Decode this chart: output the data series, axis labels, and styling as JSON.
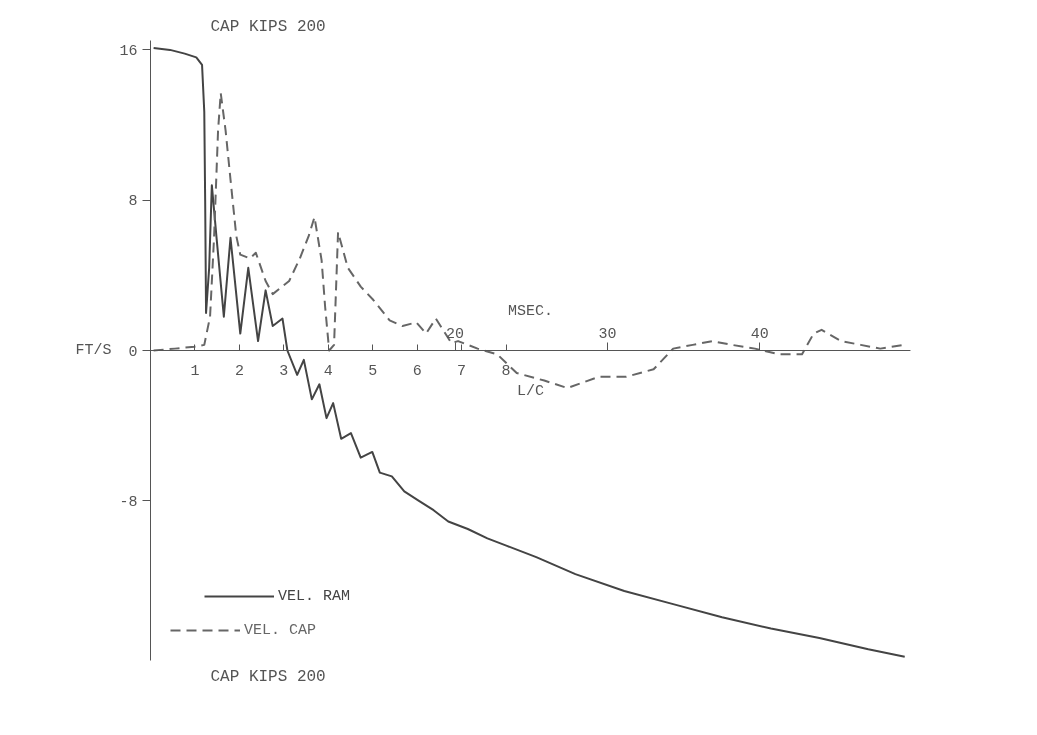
{
  "chart_data": {
    "type": "line",
    "title": "CAP KIPS 200",
    "xlabel": "L/C",
    "x2label": "MSEC.",
    "ylabel": "FT/S",
    "annotations": [
      "CAP KIPS 200"
    ],
    "xlim": [
      0,
      17.1
    ],
    "xticks": [
      1,
      2,
      3,
      4,
      5,
      6,
      7,
      8
    ],
    "x2lim": [
      0,
      49.9
    ],
    "x2ticks": [
      20,
      30,
      40
    ],
    "ylim": [
      -16.5,
      16.5
    ],
    "yticks": [
      -8,
      0,
      8,
      16
    ],
    "grid": false,
    "legend": "bottom left",
    "series": [
      {
        "name": "VEL. RAM",
        "color": "#444444",
        "line_style": "solid",
        "x": [
          0.07,
          0.44,
          0.77,
          1.03,
          1.16,
          1.21,
          1.23,
          1.25,
          1.32,
          1.38,
          1.49,
          1.65,
          1.8,
          2.02,
          2.2,
          2.42,
          2.59,
          2.75,
          2.97,
          3.08,
          3.3,
          3.45,
          3.63,
          3.8,
          3.96,
          4.11,
          4.29,
          4.51,
          4.73,
          4.99,
          5.16,
          5.43,
          5.71,
          6.04,
          6.37,
          6.7,
          7.14,
          7.58,
          8.02,
          8.68,
          9.56,
          10.66,
          11.76,
          12.86,
          13.96,
          15.05,
          16.15,
          16.97
        ],
        "values": [
          16.1,
          16.0,
          15.8,
          15.6,
          15.2,
          12.7,
          8.0,
          2.0,
          4.4,
          8.8,
          5.9,
          1.8,
          6.0,
          0.9,
          4.4,
          0.5,
          3.2,
          1.3,
          1.7,
          0.0,
          -1.3,
          -0.5,
          -2.6,
          -1.8,
          -3.6,
          -2.8,
          -4.7,
          -4.4,
          -5.7,
          -5.4,
          -6.5,
          -6.7,
          -7.5,
          -8.0,
          -8.5,
          -9.1,
          -9.5,
          -10.0,
          -10.4,
          -11.0,
          -11.9,
          -12.8,
          -13.5,
          -14.2,
          -14.8,
          -15.3,
          -15.9,
          -16.3
        ]
      },
      {
        "name": "VEL. CAP",
        "color": "#666666",
        "line_style": "dashed",
        "x": [
          0.07,
          0.55,
          0.99,
          1.21,
          1.34,
          1.43,
          1.52,
          1.58,
          1.69,
          1.8,
          1.93,
          2.02,
          2.24,
          2.37,
          2.59,
          2.75,
          3.12,
          3.36,
          3.56,
          3.69,
          3.85,
          3.93,
          4.02,
          4.13,
          4.22,
          4.44,
          4.73,
          5.01,
          5.38,
          5.67,
          5.98,
          6.2,
          6.42,
          6.77,
          6.92,
          7.36,
          7.8,
          8.24,
          8.86,
          9.38,
          10.09,
          10.7,
          11.32,
          11.76,
          12.2,
          12.64,
          13.08,
          13.6,
          14.13,
          14.66,
          14.92,
          15.1,
          15.54,
          15.98,
          16.42,
          16.95
        ],
        "values": [
          0.0,
          0.1,
          0.2,
          0.3,
          1.8,
          6.0,
          11.7,
          13.7,
          11.7,
          9.1,
          6.1,
          5.1,
          4.9,
          5.2,
          3.7,
          3.0,
          3.7,
          4.9,
          6.1,
          7.1,
          4.8,
          2.3,
          0.0,
          0.3,
          6.3,
          4.4,
          3.4,
          2.7,
          1.6,
          1.3,
          1.5,
          0.9,
          1.7,
          0.4,
          0.5,
          0.1,
          -0.2,
          -1.2,
          -1.6,
          -2.0,
          -1.4,
          -1.4,
          -1.0,
          0.1,
          0.3,
          0.5,
          0.3,
          0.1,
          -0.2,
          -0.2,
          0.9,
          1.1,
          0.5,
          0.3,
          0.1,
          0.3
        ]
      }
    ]
  }
}
